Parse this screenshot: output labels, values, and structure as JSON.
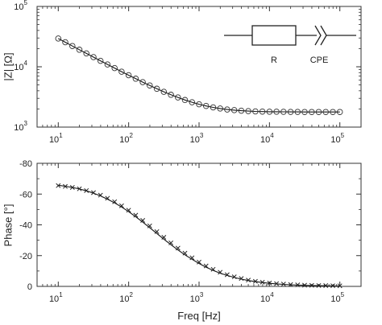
{
  "chart_data": [
    {
      "type": "scatter",
      "ylabel": "|Z| [Ω]",
      "xlabel": "",
      "xscale": "log",
      "yscale": "log",
      "xlim": [
        5,
        200000
      ],
      "ylim": [
        1000,
        100000
      ],
      "x_ticks": [
        {
          "value": 10,
          "base": "10",
          "exp": "1"
        },
        {
          "value": 100,
          "base": "10",
          "exp": "2"
        },
        {
          "value": 1000,
          "base": "10",
          "exp": "3"
        },
        {
          "value": 10000,
          "base": "10",
          "exp": "4"
        },
        {
          "value": 100000,
          "base": "10",
          "exp": "5"
        }
      ],
      "y_ticks": [
        {
          "value": 1000,
          "base": "10",
          "exp": "3"
        },
        {
          "value": 10000,
          "base": "10",
          "exp": "4"
        },
        {
          "value": 100000,
          "base": "10",
          "exp": "5"
        }
      ],
      "series": [
        {
          "marker": "circle",
          "x": [
            10.0,
            12.59,
            15.85,
            19.95,
            25.12,
            31.62,
            39.81,
            50.12,
            63.1,
            79.43,
            100.0,
            125.9,
            158.5,
            199.5,
            251.2,
            316.2,
            398.1,
            501.2,
            631.0,
            794.3,
            1000,
            1259,
            1585,
            1995,
            2512,
            3162,
            3981,
            5012,
            6310,
            7943,
            10000,
            12590,
            15850,
            19950,
            25120,
            31620,
            39810,
            50120,
            63100,
            79430,
            100000
          ],
          "y": [
            29400,
            25500,
            22100,
            19200,
            16650,
            14460,
            12560,
            10920,
            9510,
            8290,
            7240,
            6340,
            5560,
            4900,
            4330,
            3850,
            3440,
            3100,
            2810,
            2580,
            2390,
            2240,
            2120,
            2030,
            1960,
            1910,
            1870,
            1840,
            1820,
            1810,
            1800,
            1795,
            1790,
            1787,
            1785,
            1783,
            1782,
            1781,
            1781,
            1780,
            1780
          ]
        },
        {
          "marker": "line",
          "x": [
            10.0,
            12.59,
            15.85,
            19.95,
            25.12,
            31.62,
            39.81,
            50.12,
            63.1,
            79.43,
            100.0,
            125.9,
            158.5,
            199.5,
            251.2,
            316.2,
            398.1,
            501.2,
            631.0,
            794.3,
            1000,
            1259,
            1585,
            1995,
            2512,
            3162,
            3981,
            5012,
            6310,
            7943,
            10000,
            12590,
            15850,
            19950,
            25120,
            31620,
            39810,
            50120,
            63100,
            79430,
            100000
          ],
          "y": [
            29400,
            25500,
            22100,
            19200,
            16650,
            14460,
            12560,
            10920,
            9510,
            8290,
            7240,
            6340,
            5560,
            4900,
            4330,
            3850,
            3440,
            3100,
            2810,
            2580,
            2390,
            2240,
            2120,
            2030,
            1960,
            1910,
            1870,
            1840,
            1820,
            1810,
            1800,
            1795,
            1790,
            1787,
            1785,
            1783,
            1782,
            1781,
            1781,
            1780,
            1780
          ]
        }
      ],
      "inset": {
        "resistor_label": "R",
        "cpe_label": "CPE"
      }
    },
    {
      "type": "scatter",
      "ylabel": "Phase [°]",
      "xlabel": "Freq [Hz]",
      "xscale": "log",
      "xlim": [
        5,
        200000
      ],
      "ylim": [
        0,
        -80
      ],
      "y_inverted": true,
      "x_ticks": [
        {
          "value": 10,
          "base": "10",
          "exp": "1"
        },
        {
          "value": 100,
          "base": "10",
          "exp": "2"
        },
        {
          "value": 1000,
          "base": "10",
          "exp": "3"
        },
        {
          "value": 10000,
          "base": "10",
          "exp": "4"
        },
        {
          "value": 100000,
          "base": "10",
          "exp": "5"
        }
      ],
      "y_ticks": [
        {
          "value": 0,
          "label": "0"
        },
        {
          "value": -20,
          "label": "-20"
        },
        {
          "value": -40,
          "label": "-40"
        },
        {
          "value": -60,
          "label": "-60"
        },
        {
          "value": -80,
          "label": "-80"
        }
      ],
      "series": [
        {
          "marker": "x",
          "x": [
            10.0,
            12.59,
            15.85,
            19.95,
            25.12,
            31.62,
            39.81,
            50.12,
            63.1,
            79.43,
            100.0,
            125.9,
            158.5,
            199.5,
            251.2,
            316.2,
            398.1,
            501.2,
            631.0,
            794.3,
            1000,
            1259,
            1585,
            1995,
            2512,
            3162,
            3981,
            5012,
            6310,
            7943,
            10000,
            12590,
            15850,
            19950,
            25120,
            31620,
            39810,
            50120,
            63100,
            79430,
            100000
          ],
          "y": [
            -65.5,
            -65.0,
            -64.3,
            -63.4,
            -62.3,
            -60.9,
            -59.3,
            -57.3,
            -55.0,
            -52.4,
            -49.5,
            -46.3,
            -42.9,
            -39.3,
            -35.6,
            -31.9,
            -28.3,
            -24.9,
            -21.6,
            -18.6,
            -15.8,
            -13.3,
            -11.1,
            -9.2,
            -7.6,
            -6.2,
            -5.1,
            -4.1,
            -3.3,
            -2.7,
            -2.2,
            -1.8,
            -1.5,
            -1.2,
            -1.0,
            -0.8,
            -0.7,
            -0.6,
            -0.5,
            -0.4,
            -0.35
          ]
        },
        {
          "marker": "line",
          "x": [
            10.0,
            12.59,
            15.85,
            19.95,
            25.12,
            31.62,
            39.81,
            50.12,
            63.1,
            79.43,
            100.0,
            125.9,
            158.5,
            199.5,
            251.2,
            316.2,
            398.1,
            501.2,
            631.0,
            794.3,
            1000,
            1259,
            1585,
            1995,
            2512,
            3162,
            3981,
            5012,
            6310,
            7943,
            10000,
            12590,
            15850,
            19950,
            25120,
            31620,
            39810,
            50120,
            63100,
            79430,
            100000
          ],
          "y": [
            -65.7,
            -65.1,
            -64.3,
            -63.3,
            -62.1,
            -60.6,
            -58.8,
            -56.7,
            -54.3,
            -51.6,
            -48.6,
            -45.3,
            -41.8,
            -38.1,
            -34.4,
            -30.7,
            -27.1,
            -23.7,
            -20.5,
            -17.6,
            -14.9,
            -12.5,
            -10.4,
            -8.6,
            -7.1,
            -5.8,
            -4.7,
            -3.8,
            -3.1,
            -2.5,
            -2.0,
            -1.6,
            -1.3,
            -1.05,
            -0.85,
            -0.7,
            -0.55,
            -0.45,
            -0.37,
            -0.3,
            -0.25
          ]
        }
      ]
    }
  ]
}
